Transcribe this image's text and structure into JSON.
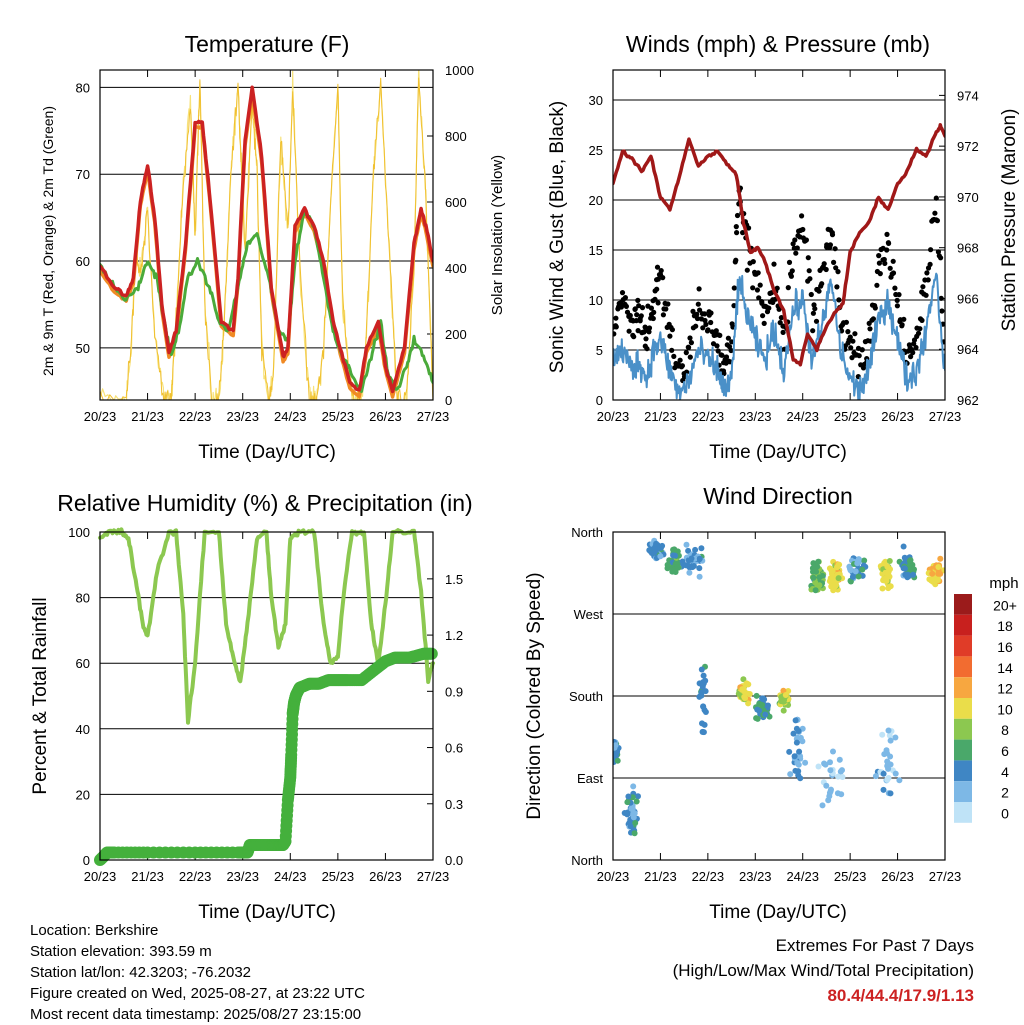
{
  "x_ticks": [
    "20/23",
    "21/23",
    "22/23",
    "23/23",
    "24/23",
    "25/23",
    "26/23",
    "27/23"
  ],
  "xlabel": "Time (Day/UTC)",
  "colors": {
    "temp_2m": "#cc2222",
    "temp_9m": "#f08a24",
    "dewpoint": "#4aaa3a",
    "solar": "#f7e27a",
    "wind": "#4a90c8",
    "gust": "#000000",
    "pressure": "#a01818",
    "rh": "#8cc850",
    "rain": "#44b03c"
  },
  "chart_data": [
    {
      "type": "line",
      "id": "temperature",
      "title": "Temperature (F)",
      "ylabel": "2m & 9m T (Red, Orange) & 2m Td (Green)",
      "y2label": "Solar Insolation (Yellow)",
      "ylim": [
        44,
        82
      ],
      "yticks": [
        50,
        60,
        70,
        80
      ],
      "y2lim": [
        0,
        1000
      ],
      "y2ticks": [
        0,
        200,
        400,
        600,
        800,
        1000
      ],
      "xlim": [
        0,
        7
      ],
      "series": [
        {
          "key": "temp_2m",
          "x": [
            0,
            0.3,
            0.55,
            0.7,
            0.85,
            1.0,
            1.15,
            1.3,
            1.45,
            1.6,
            1.8,
            2.0,
            2.15,
            2.3,
            2.55,
            2.8,
            2.9,
            3.05,
            3.2,
            3.4,
            3.6,
            3.85,
            3.95,
            4.1,
            4.3,
            4.5,
            4.7,
            4.9,
            5.05,
            5.25,
            5.45,
            5.6,
            5.85,
            6.0,
            6.15,
            6.4,
            6.6,
            6.75,
            6.85,
            7.0
          ],
          "y": [
            59.5,
            57,
            56,
            58,
            67,
            71,
            65,
            55,
            49.5,
            52,
            62,
            76,
            76,
            68,
            53,
            52,
            58,
            74,
            80,
            72,
            57,
            49,
            50,
            64,
            66,
            64,
            60,
            53,
            50,
            46,
            45,
            50,
            53,
            48,
            45,
            50,
            62,
            66,
            64,
            60
          ]
        },
        {
          "key": "dewpoint",
          "x": [
            0,
            0.3,
            0.55,
            0.8,
            1.0,
            1.2,
            1.35,
            1.5,
            1.65,
            1.85,
            2.05,
            2.3,
            2.5,
            2.7,
            2.9,
            3.1,
            3.3,
            3.55,
            3.75,
            3.95,
            4.1,
            4.3,
            4.5,
            4.7,
            4.9,
            5.1,
            5.3,
            5.5,
            5.7,
            5.9,
            6.05,
            6.25,
            6.45,
            6.6,
            6.8,
            7.0
          ],
          "y": [
            59.5,
            57,
            55.5,
            57,
            60,
            58,
            53,
            49,
            52,
            58,
            60,
            57,
            53,
            52,
            57,
            62,
            63,
            58,
            52,
            51,
            60,
            66,
            64,
            58,
            52,
            49,
            47,
            45,
            49,
            53,
            47,
            45,
            48,
            51,
            49,
            46
          ]
        },
        {
          "key": "solar",
          "x": [
            0,
            0.55,
            0.65,
            0.75,
            0.85,
            1.0,
            1.15,
            1.35,
            1.5,
            1.6,
            1.75,
            1.9,
            2.0,
            2.1,
            2.2,
            2.35,
            2.5,
            2.6,
            2.75,
            2.9,
            3.05,
            3.2,
            3.3,
            3.4,
            3.55,
            3.65,
            3.8,
            3.95,
            4.05,
            4.2,
            4.4,
            4.55,
            4.7,
            4.85,
            5.0,
            5.1,
            5.3,
            5.5,
            5.6,
            5.75,
            5.9,
            6.1,
            6.25,
            6.45,
            6.6,
            6.7,
            6.85,
            7.0
          ],
          "y": [
            0,
            0,
            150,
            450,
            380,
            580,
            200,
            0,
            0,
            250,
            650,
            900,
            500,
            980,
            300,
            0,
            0,
            200,
            680,
            950,
            450,
            900,
            700,
            150,
            0,
            100,
            800,
            500,
            950,
            400,
            0,
            0,
            150,
            600,
            950,
            300,
            0,
            0,
            200,
            700,
            950,
            400,
            0,
            0,
            400,
            1000,
            600,
            0
          ]
        }
      ]
    },
    {
      "type": "line",
      "id": "winds",
      "title": "Winds (mph) & Pressure (mb)",
      "ylabel": "Sonic Wind & Gust (Blue, Black)",
      "y2label": "Station Pressure (Maroon)",
      "ylim": [
        0,
        33
      ],
      "yticks": [
        0,
        5,
        10,
        15,
        20,
        25,
        30
      ],
      "y2lim": [
        962,
        975
      ],
      "y2ticks": [
        962,
        964,
        966,
        968,
        970,
        972,
        974
      ],
      "xlim": [
        0,
        7
      ],
      "series": [
        {
          "key": "gust",
          "x": [
            0,
            0.2,
            0.4,
            0.55,
            0.7,
            0.85,
            1.0,
            1.2,
            1.4,
            1.6,
            1.8,
            2.0,
            2.2,
            2.35,
            2.5,
            2.65,
            2.8,
            3.0,
            3.2,
            3.4,
            3.6,
            3.8,
            4.0,
            4.2,
            4.4,
            4.6,
            4.8,
            5.0,
            5.2,
            5.4,
            5.6,
            5.8,
            6.0,
            6.2,
            6.4,
            6.6,
            6.8,
            7.0
          ],
          "y": [
            8,
            10,
            7,
            9,
            6,
            10,
            12,
            7,
            2,
            5,
            9,
            8,
            6,
            4,
            5,
            21,
            16,
            12,
            8,
            12,
            6,
            15,
            18,
            8,
            12,
            18,
            8,
            5,
            4,
            6,
            14,
            16,
            10,
            5,
            7,
            12,
            20,
            5
          ]
        },
        {
          "key": "wind",
          "x": [
            0,
            0.2,
            0.4,
            0.55,
            0.7,
            0.85,
            1.0,
            1.2,
            1.4,
            1.6,
            1.8,
            2.0,
            2.2,
            2.35,
            2.5,
            2.65,
            2.8,
            3.0,
            3.2,
            3.4,
            3.6,
            3.8,
            4.0,
            4.2,
            4.4,
            4.6,
            4.8,
            5.0,
            5.2,
            5.4,
            5.6,
            5.8,
            6.0,
            6.2,
            6.4,
            6.6,
            6.8,
            7.0
          ],
          "y": [
            4,
            5,
            3,
            4,
            2,
            5,
            6,
            3,
            0.5,
            2,
            5,
            4,
            3,
            1,
            2,
            12,
            9,
            6,
            4,
            7,
            3,
            9,
            10,
            4,
            7,
            12,
            5,
            2,
            1,
            3,
            8,
            10,
            6,
            2,
            3,
            7,
            13,
            3
          ]
        },
        {
          "key": "pressure",
          "x": [
            0,
            0.2,
            0.4,
            0.6,
            0.8,
            1.0,
            1.2,
            1.4,
            1.6,
            1.8,
            2.0,
            2.2,
            2.4,
            2.6,
            2.75,
            2.9,
            3.05,
            3.2,
            3.4,
            3.6,
            3.8,
            3.95,
            4.1,
            4.3,
            4.5,
            4.7,
            4.85,
            5.0,
            5.2,
            5.4,
            5.6,
            5.8,
            6.0,
            6.2,
            6.4,
            6.6,
            6.8,
            6.9,
            7.0
          ],
          "y": [
            970.5,
            971.8,
            971.5,
            971,
            971.6,
            970,
            969.5,
            970.8,
            972.3,
            971.2,
            971.6,
            971.8,
            971.3,
            970.9,
            969,
            967.8,
            968,
            967.5,
            966.3,
            965.5,
            963.6,
            963.4,
            964.6,
            964,
            964.9,
            965.5,
            965.8,
            967.8,
            968.6,
            969,
            970,
            969.5,
            970.5,
            971,
            971.9,
            971.6,
            972.5,
            972.8,
            972.4
          ]
        }
      ]
    },
    {
      "type": "line",
      "id": "rh_precip",
      "title": "Relative Humidity (%) & Precipitation (in)",
      "ylabel": "Percent & Total Rainfall",
      "ylim": [
        0,
        100
      ],
      "yticks": [
        0,
        20,
        40,
        60,
        80,
        100
      ],
      "y2lim": [
        0,
        1.75
      ],
      "y2ticks": [
        "0.0",
        "0.3",
        "0.6",
        "0.9",
        "1.2",
        "1.5"
      ],
      "y2tick_values": [
        0,
        0.3,
        0.6,
        0.9,
        1.2,
        1.5
      ],
      "xlim": [
        0,
        7
      ],
      "series": [
        {
          "key": "rh",
          "x": [
            0,
            0.2,
            0.45,
            0.6,
            0.75,
            0.9,
            1.0,
            1.2,
            1.45,
            1.6,
            1.75,
            1.85,
            2.0,
            2.2,
            2.5,
            2.65,
            2.8,
            2.95,
            3.1,
            3.3,
            3.5,
            3.6,
            3.75,
            3.9,
            4.0,
            4.2,
            4.5,
            4.7,
            4.85,
            5.0,
            5.15,
            5.3,
            5.55,
            5.7,
            5.85,
            6.0,
            6.15,
            6.3,
            6.6,
            6.75,
            6.9,
            7.0
          ],
          "y": [
            98,
            100,
            100,
            98,
            85,
            72,
            68,
            88,
            100,
            100,
            75,
            42,
            60,
            100,
            100,
            72,
            62,
            54,
            72,
            98,
            100,
            80,
            65,
            72,
            98,
            100,
            100,
            72,
            60,
            62,
            85,
            100,
            100,
            72,
            60,
            78,
            100,
            100,
            100,
            82,
            55,
            60
          ]
        },
        {
          "key": "rain",
          "x": [
            0,
            0.08,
            0.15,
            0.3,
            1.0,
            2.0,
            2.9,
            3.1,
            3.15,
            3.3,
            3.6,
            3.75,
            3.85,
            3.9,
            3.95,
            4.0,
            4.02,
            4.05,
            4.08,
            4.12,
            4.2,
            4.4,
            4.6,
            4.8,
            5.0,
            5.2,
            5.5,
            5.8,
            6.0,
            6.2,
            6.5,
            6.8,
            7.0
          ],
          "y": [
            0,
            0.02,
            0.04,
            0.04,
            0.04,
            0.04,
            0.04,
            0.04,
            0.08,
            0.08,
            0.08,
            0.08,
            0.08,
            0.1,
            0.32,
            0.44,
            0.56,
            0.78,
            0.84,
            0.88,
            0.92,
            0.94,
            0.94,
            0.96,
            0.96,
            0.96,
            0.96,
            1.02,
            1.06,
            1.08,
            1.08,
            1.1,
            1.1
          ]
        }
      ]
    },
    {
      "type": "scatter",
      "id": "wind_direction",
      "title": "Wind Direction",
      "ylabel": "Direction (Colored By Speed)",
      "ylim": [
        0,
        360
      ],
      "yticks": [
        0,
        90,
        180,
        270,
        360
      ],
      "ytick_labels": [
        "North",
        "East",
        "South",
        "West",
        "North"
      ],
      "xlim": [
        0,
        7
      ],
      "legend": {
        "unit": "mph",
        "labels": [
          "20+",
          "18",
          "16",
          "14",
          "12",
          "10",
          "8",
          "6",
          "4",
          "2",
          "0"
        ],
        "colors": [
          "#9b1b1b",
          "#c8201e",
          "#e03c28",
          "#f26c30",
          "#f7a740",
          "#eadd4a",
          "#8cc850",
          "#4aa86a",
          "#3f86c4",
          "#7db8e6",
          "#bfe3f7"
        ]
      },
      "clusters": [
        {
          "x": 0.05,
          "y": 120,
          "spd": 4,
          "n": 8,
          "xs": 0.08,
          "ys": 20
        },
        {
          "x": 0.4,
          "y": 50,
          "spd": 4,
          "n": 14,
          "xs": 0.2,
          "ys": 35
        },
        {
          "x": 0.9,
          "y": 340,
          "spd": 4,
          "n": 14,
          "xs": 0.25,
          "ys": 15
        },
        {
          "x": 1.3,
          "y": 330,
          "spd": 6,
          "n": 12,
          "xs": 0.2,
          "ys": 20
        },
        {
          "x": 1.7,
          "y": 330,
          "spd": 3,
          "n": 12,
          "xs": 0.3,
          "ys": 25
        },
        {
          "x": 1.9,
          "y": 180,
          "spd": 4,
          "n": 8,
          "xs": 0.15,
          "ys": 70
        },
        {
          "x": 2.75,
          "y": 185,
          "spd": 10,
          "n": 14,
          "xs": 0.15,
          "ys": 15
        },
        {
          "x": 3.15,
          "y": 165,
          "spd": 5,
          "n": 10,
          "xs": 0.2,
          "ys": 20
        },
        {
          "x": 3.6,
          "y": 175,
          "spd": 9,
          "n": 12,
          "xs": 0.15,
          "ys": 15
        },
        {
          "x": 3.9,
          "y": 120,
          "spd": 3,
          "n": 10,
          "xs": 0.2,
          "ys": 60
        },
        {
          "x": 4.3,
          "y": 310,
          "spd": 7,
          "n": 14,
          "xs": 0.2,
          "ys": 25
        },
        {
          "x": 4.7,
          "y": 310,
          "spd": 10,
          "n": 16,
          "xs": 0.2,
          "ys": 20
        },
        {
          "x": 5.15,
          "y": 320,
          "spd": 4,
          "n": 12,
          "xs": 0.25,
          "ys": 25
        },
        {
          "x": 5.75,
          "y": 315,
          "spd": 10,
          "n": 16,
          "xs": 0.2,
          "ys": 20
        },
        {
          "x": 6.2,
          "y": 320,
          "spd": 5,
          "n": 12,
          "xs": 0.25,
          "ys": 25
        },
        {
          "x": 6.8,
          "y": 315,
          "spd": 11,
          "n": 16,
          "xs": 0.18,
          "ys": 20
        },
        {
          "x": 5.8,
          "y": 110,
          "spd": 2,
          "n": 10,
          "xs": 0.3,
          "ys": 60
        },
        {
          "x": 4.6,
          "y": 90,
          "spd": 2,
          "n": 8,
          "xs": 0.4,
          "ys": 60
        }
      ]
    }
  ],
  "info": {
    "location": "Location: Berkshire",
    "elevation": "Station elevation: 393.59 m",
    "latlon": "Station lat/lon: 42.3203; -76.2032",
    "created": "Figure created on Wed, 2025-08-27, at 23:22 UTC",
    "recent": "Most recent data timestamp: 2025/08/27 23:15:00"
  },
  "extremes": {
    "title": "Extremes For Past 7 Days",
    "subtitle": "(High/Low/Max Wind/Total Precipitation)",
    "values": "80.4/44.4/17.9/1.13"
  }
}
